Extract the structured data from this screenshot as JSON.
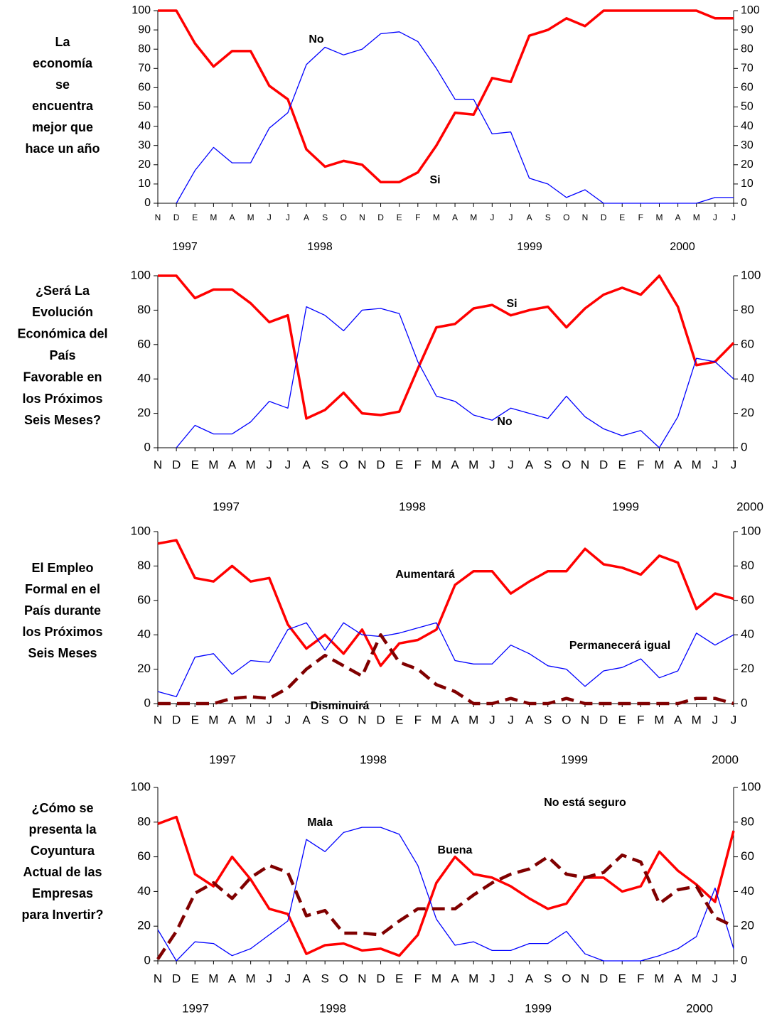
{
  "chart_data": [
    {
      "type": "line",
      "title": [
        "La",
        "economía",
        "se",
        "encuentra",
        "mejor que",
        "hace un año"
      ],
      "categories": [
        "N",
        "D",
        "E",
        "M",
        "A",
        "M",
        "J",
        "J",
        "A",
        "S",
        "O",
        "N",
        "D",
        "E",
        "F",
        "M",
        "A",
        "M",
        "J",
        "J",
        "A",
        "S",
        "O",
        "N",
        "D",
        "E",
        "F",
        "M",
        "A",
        "M",
        "J",
        "J"
      ],
      "year_labels": [
        "1997",
        "1998",
        "1999",
        "2000"
      ],
      "series": [
        {
          "name": "Si",
          "color": "#ff0000",
          "dashed": false,
          "values": [
            100,
            100,
            83,
            71,
            79,
            79,
            61,
            54,
            28,
            19,
            22,
            20,
            11,
            11,
            16,
            30,
            47,
            46,
            65,
            63,
            87,
            90,
            96,
            92,
            100,
            100,
            100,
            100,
            100,
            100,
            96,
            96
          ]
        },
        {
          "name": "No",
          "color": "#0000ff",
          "dashed": false,
          "values": [
            null,
            0,
            17,
            29,
            21,
            21,
            39,
            47,
            72,
            81,
            77,
            80,
            88,
            89,
            84,
            70,
            54,
            54,
            36,
            37,
            13,
            10,
            3,
            7,
            0,
            0,
            0,
            0,
            0,
            0,
            3,
            3
          ]
        }
      ],
      "ylim": [
        0,
        100
      ],
      "yticks": [
        0,
        10,
        20,
        30,
        40,
        50,
        60,
        70,
        80,
        90,
        100
      ],
      "y2lim": [
        0,
        100
      ],
      "y2ticks": [
        0,
        10,
        20,
        30,
        40,
        50,
        60,
        70,
        80,
        90,
        100
      ]
    },
    {
      "type": "line",
      "title": [
        "¿Será La",
        "Evolución",
        "Económica del",
        "País",
        "Favorable en",
        "los Próximos",
        "Seis Meses?"
      ],
      "categories": [
        "N",
        "D",
        "E",
        "M",
        "A",
        "M",
        "J",
        "J",
        "A",
        "S",
        "O",
        "N",
        "D",
        "E",
        "F",
        "M",
        "A",
        "M",
        "J",
        "J",
        "A",
        "S",
        "O",
        "N",
        "D",
        "E",
        "F",
        "M",
        "A",
        "M",
        "J",
        "J"
      ],
      "year_labels": [
        "1997",
        "1998",
        "1999",
        "2000"
      ],
      "series": [
        {
          "name": "Si",
          "color": "#ff0000",
          "dashed": false,
          "values": [
            100,
            100,
            87,
            92,
            92,
            84,
            73,
            77,
            17,
            22,
            32,
            20,
            19,
            21,
            46,
            70,
            72,
            81,
            83,
            77,
            80,
            82,
            70,
            81,
            89,
            93,
            89,
            100,
            82,
            48,
            50,
            61
          ]
        },
        {
          "name": "No",
          "color": "#0000ff",
          "dashed": false,
          "values": [
            null,
            0,
            13,
            8,
            8,
            15,
            27,
            23,
            82,
            77,
            68,
            80,
            81,
            78,
            50,
            30,
            27,
            19,
            16,
            23,
            20,
            17,
            30,
            18,
            11,
            7,
            10,
            0,
            18,
            52,
            50,
            40
          ]
        }
      ],
      "ylim": [
        0,
        100
      ],
      "yticks": [
        0,
        20,
        40,
        60,
        80,
        100
      ],
      "y2lim": [
        0,
        100
      ],
      "y2ticks": [
        0,
        20,
        40,
        60,
        80,
        100
      ]
    },
    {
      "type": "line",
      "title": [
        "El Empleo",
        "Formal en el",
        "País durante",
        "los Próximos",
        "Seis Meses"
      ],
      "categories": [
        "N",
        "D",
        "E",
        "M",
        "A",
        "M",
        "J",
        "J",
        "A",
        "S",
        "O",
        "N",
        "D",
        "E",
        "F",
        "M",
        "A",
        "M",
        "J",
        "J",
        "A",
        "S",
        "O",
        "N",
        "D",
        "E",
        "F",
        "M",
        "A",
        "M",
        "J",
        "J"
      ],
      "year_labels": [
        "1997",
        "1998",
        "1999",
        "2000"
      ],
      "series": [
        {
          "name": "Aumentará",
          "color": "#ff0000",
          "dashed": false,
          "values": [
            93,
            95,
            73,
            71,
            80,
            71,
            73,
            46,
            32,
            40,
            29,
            43,
            22,
            35,
            37,
            43,
            69,
            77,
            77,
            64,
            71,
            77,
            77,
            90,
            81,
            79,
            75,
            86,
            82,
            55,
            64,
            61
          ]
        },
        {
          "name": "Permanecerá igual",
          "color": "#0000ff",
          "dashed": false,
          "values": [
            7,
            4,
            27,
            29,
            17,
            25,
            24,
            43,
            47,
            31,
            47,
            40,
            39,
            41,
            44,
            47,
            25,
            23,
            23,
            34,
            29,
            22,
            20,
            10,
            19,
            21,
            26,
            15,
            19,
            41,
            34,
            40
          ]
        },
        {
          "name": "Disminuirá",
          "color": "#800000",
          "dashed": true,
          "values": [
            0,
            0,
            0,
            0,
            3,
            4,
            3,
            9,
            20,
            28,
            22,
            16,
            40,
            24,
            20,
            11,
            7,
            0,
            0,
            3,
            0,
            0,
            3,
            0,
            0,
            0,
            0,
            0,
            0,
            3,
            3,
            0
          ]
        }
      ],
      "ylim": [
        0,
        100
      ],
      "yticks": [
        0,
        20,
        40,
        60,
        80,
        100
      ],
      "y2lim": [
        0,
        100
      ],
      "y2ticks": [
        0,
        20,
        40,
        60,
        80,
        100
      ]
    },
    {
      "type": "line",
      "title": [
        "¿Cómo se",
        "presenta  la",
        "Coyuntura",
        "Actual de las",
        "Empresas",
        "para Invertir?"
      ],
      "categories": [
        "N",
        "D",
        "E",
        "M",
        "A",
        "M",
        "J",
        "J",
        "A",
        "S",
        "O",
        "N",
        "D",
        "E",
        "F",
        "M",
        "A",
        "M",
        "J",
        "J",
        "A",
        "S",
        "O",
        "N",
        "D",
        "E",
        "F",
        "M",
        "A",
        "M",
        "J",
        "J"
      ],
      "year_labels": [
        "1997",
        "1998",
        "1999",
        "2000"
      ],
      "series": [
        {
          "name": "Buena",
          "color": "#ff0000",
          "dashed": false,
          "values": [
            79,
            83,
            50,
            43,
            60,
            47,
            30,
            27,
            4,
            9,
            10,
            6,
            7,
            3,
            15,
            45,
            60,
            50,
            48,
            43,
            36,
            30,
            33,
            48,
            48,
            40,
            43,
            63,
            52,
            44,
            34,
            75
          ]
        },
        {
          "name": "Mala",
          "color": "#0000ff",
          "dashed": false,
          "values": [
            18,
            0,
            11,
            10,
            3,
            7,
            15,
            23,
            70,
            63,
            74,
            77,
            77,
            73,
            55,
            24,
            9,
            11,
            6,
            6,
            10,
            10,
            17,
            4,
            0,
            0,
            0,
            3,
            7,
            14,
            42,
            7
          ]
        },
        {
          "name": "No está seguro",
          "color": "#800000",
          "dashed": true,
          "values": [
            1,
            17,
            39,
            45,
            36,
            48,
            55,
            51,
            26,
            29,
            16,
            16,
            15,
            23,
            30,
            30,
            30,
            38,
            45,
            50,
            53,
            60,
            50,
            48,
            51,
            61,
            57,
            33,
            41,
            43,
            25,
            20
          ]
        }
      ],
      "ylim": [
        0,
        100
      ],
      "yticks": [
        0,
        20,
        40,
        60,
        80,
        100
      ],
      "y2lim": [
        0,
        100
      ],
      "y2ticks": [
        0,
        20,
        40,
        60,
        80,
        100
      ]
    }
  ]
}
